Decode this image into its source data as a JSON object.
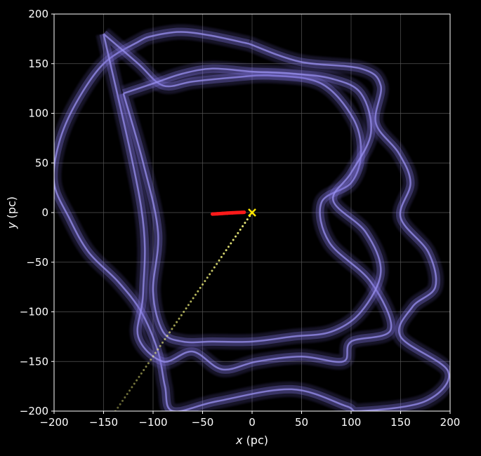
{
  "chart_data": {
    "type": "scatter",
    "background": "#000000",
    "xlabel": {
      "var": "x",
      "unit": " (pc)"
    },
    "ylabel": {
      "var": "y",
      "unit": " (pc)"
    },
    "xlim": [
      -200,
      200
    ],
    "ylim": [
      -200,
      200
    ],
    "xticks": [
      "-200",
      "-150",
      "-100",
      "-50",
      "0",
      "50",
      "100",
      "150",
      "200"
    ],
    "yticks": [
      "-200",
      "-150",
      "-100",
      "-50",
      "0",
      "50",
      "100",
      "150",
      "200"
    ],
    "grid": true,
    "colors": {
      "orbit_band": "#7b6fd8",
      "red_track": "#ff1a1a",
      "trail": "#f0f07a",
      "marker": "#ffe600",
      "grid": "#555555",
      "frame": "#ffffff"
    },
    "series": [
      {
        "kind": "orbit-band",
        "x": [
          -3,
          48,
          110,
          130,
          125,
          148,
          160,
          150,
          178,
          185,
          162,
          150,
          198,
          175,
          110,
          95,
          40,
          -35,
          -80,
          -88,
          -95,
          -112,
          -135,
          -165,
          -185,
          -200,
          -195,
          -178,
          -150,
          -115,
          -100,
          -72,
          -40,
          -3
        ],
        "y": [
          170,
          152,
          145,
          128,
          90,
          60,
          30,
          -5,
          -40,
          -75,
          -95,
          -125,
          -160,
          -190,
          -200,
          -195,
          -178,
          -190,
          -200,
          -175,
          -140,
          -100,
          -70,
          -40,
          -5,
          30,
          70,
          110,
          150,
          172,
          178,
          182,
          178,
          170
        ]
      },
      {
        "kind": "orbit-band",
        "x": [
          -150,
          -115,
          -90,
          -60,
          -20,
          20,
          70,
          102,
          110,
          100,
          70,
          78,
          120,
          140,
          100,
          92,
          50,
          5,
          -30,
          -60,
          -90,
          -115,
          -110,
          -112,
          -150
        ],
        "y": [
          180,
          150,
          128,
          132,
          136,
          138,
          130,
          95,
          60,
          30,
          10,
          -30,
          -70,
          -118,
          -130,
          -150,
          -145,
          -150,
          -158,
          -140,
          -150,
          -125,
          -80,
          5,
          180
        ]
      },
      {
        "kind": "orbit-band",
        "x": [
          -130,
          -100,
          -70,
          -40,
          0,
          40,
          80,
          110,
          120,
          100,
          82,
          115,
          130,
          110,
          80,
          40,
          0,
          -40,
          -70,
          -90,
          -100,
          -95,
          -110,
          -130
        ],
        "y": [
          120,
          130,
          140,
          145,
          142,
          140,
          135,
          120,
          80,
          40,
          12,
          -20,
          -60,
          -100,
          -120,
          -125,
          -130,
          -130,
          -130,
          -120,
          -80,
          -20,
          50,
          120
        ]
      },
      {
        "kind": "red-track",
        "x": [
          -40,
          -35,
          -30,
          -25,
          -20,
          -15,
          -10,
          -8
        ],
        "y": [
          -1.5,
          -1.2,
          -0.9,
          -0.6,
          -0.3,
          0,
          0.2,
          0.3
        ]
      },
      {
        "kind": "trail",
        "from": [
          0,
          0
        ],
        "to": [
          -138,
          -200
        ],
        "points": 58
      },
      {
        "kind": "marker",
        "shape": "x",
        "x": [
          0
        ],
        "y": [
          0
        ]
      }
    ]
  }
}
